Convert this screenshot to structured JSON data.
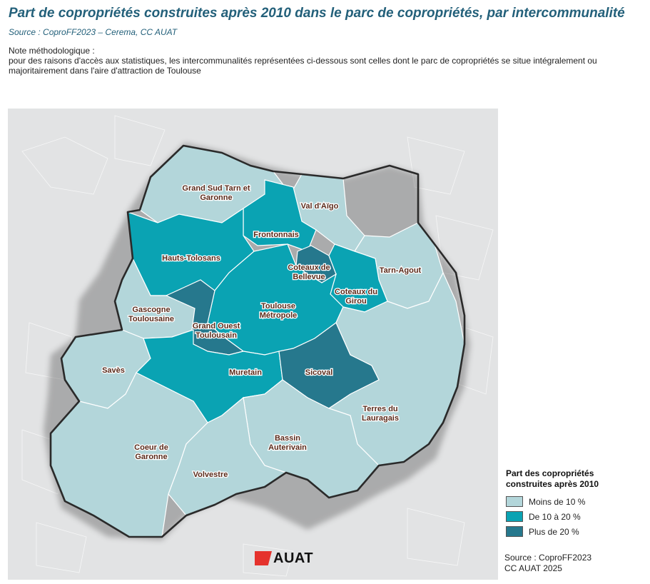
{
  "title": "Part de copropriétés construites après 2010 dans le parc de copropriétés, par intercommunalité",
  "source_top": "Source : CoproFF2023 – Cerema, CC AUAT",
  "note": {
    "heading": "Note méthodologique :",
    "line1": "pour des raisons d'accès aux statistiques, les intercommunalités représentées ci-dessous sont celles dont le parc de copropriétés se situe intégralement ou",
    "line2": "majoritairement dans l'aire d'attraction de Toulouse"
  },
  "colors": {
    "low": "#b3d6da",
    "mid": "#0aa3b3",
    "high": "#26788d",
    "background": "#e2e3e4",
    "outline": "#2a2a2a"
  },
  "regions": [
    {
      "name_line1": "Grand Sud Tarn et",
      "name_line2": "Garonne",
      "class": "low"
    },
    {
      "name_line1": "Val d'Aïgo",
      "name_line2": "",
      "class": "low"
    },
    {
      "name_line1": "Frontonnais",
      "name_line2": "",
      "class": "mid"
    },
    {
      "name_line1": "Hauts-Tolosans",
      "name_line2": "",
      "class": "mid"
    },
    {
      "name_line1": "Coteaux de",
      "name_line2": "Bellevue",
      "class": "high"
    },
    {
      "name_line1": "Tarn-Agout",
      "name_line2": "",
      "class": "low"
    },
    {
      "name_line1": "Coteaux du",
      "name_line2": "Girou",
      "class": "mid"
    },
    {
      "name_line1": "Toulouse",
      "name_line2": "Métropole",
      "class": "mid"
    },
    {
      "name_line1": "Gascogne",
      "name_line2": "Toulousaine",
      "class": "low"
    },
    {
      "name_line1": "Grand Ouest",
      "name_line2": "Toulousain",
      "class": "high"
    },
    {
      "name_line1": "Savès",
      "name_line2": "",
      "class": "low"
    },
    {
      "name_line1": "Muretain",
      "name_line2": "",
      "class": "mid"
    },
    {
      "name_line1": "Sicoval",
      "name_line2": "",
      "class": "high"
    },
    {
      "name_line1": "Terres du",
      "name_line2": "Lauragais",
      "class": "low"
    },
    {
      "name_line1": "Coeur de",
      "name_line2": "Garonne",
      "class": "low"
    },
    {
      "name_line1": "Bassin",
      "name_line2": "Auterivain",
      "class": "low"
    },
    {
      "name_line1": "Volvestre",
      "name_line2": "",
      "class": "low"
    }
  ],
  "legend": {
    "title_line1": "Part des copropriétés",
    "title_line2": "construites après 2010",
    "items": [
      {
        "label": "Moins de 10 %",
        "class": "low"
      },
      {
        "label": "De 10 à 20 %",
        "class": "mid"
      },
      {
        "label": "Plus de 20 %",
        "class": "high"
      }
    ]
  },
  "logo_text": "AUAT",
  "source_bottom": {
    "line1": "Source : CoproFF2023",
    "line2": "CC AUAT 2025"
  }
}
